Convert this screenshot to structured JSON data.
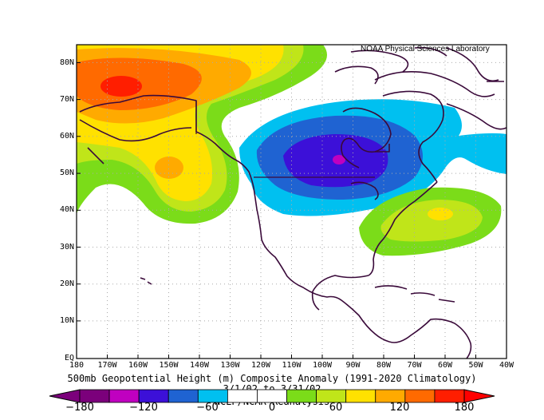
{
  "credit": "NOAA Physical Sciences Laboratory",
  "title": "500mb Geopotential Height (m) Composite Anomaly (1991-2020 Climatology)",
  "date_range": "3/1/02  to 3/31/02",
  "source": "NCEP/NCAR Reanalysis",
  "lat_labels": [
    "80N",
    "70N",
    "60N",
    "50N",
    "40N",
    "30N",
    "20N",
    "10N",
    "EQ"
  ],
  "lon_labels": [
    "180",
    "170W",
    "160W",
    "150W",
    "140W",
    "130W",
    "120W",
    "110W",
    "100W",
    "90W",
    "80W",
    "70W",
    "60W",
    "50W",
    "40W"
  ],
  "colorbar": {
    "labels": [
      "−180",
      "−120",
      "−60",
      "0",
      "60",
      "120",
      "180"
    ],
    "colors": [
      "#7b007b",
      "#c000c0",
      "#3c10d8",
      "#1f63d2",
      "#00c0f0",
      "#ffffff",
      "#ffffff",
      "#7bdc19",
      "#c0e519",
      "#ffe100",
      "#ffaa00",
      "#ff6a00",
      "#ff1e00"
    ]
  },
  "anomaly_centers": [
    {
      "label": "positive max, Bering Sea / NE Siberia",
      "value": 150
    },
    {
      "label": "positive, Gulf of Alaska",
      "value": 90
    },
    {
      "label": "negative min, Hudson Bay / central Canada",
      "value": -120
    },
    {
      "label": "positive, western Atlantic",
      "value": 75
    }
  ],
  "map_extent": {
    "lon_min": -180,
    "lon_max": -40,
    "lat_min": 0,
    "lat_max": 85
  }
}
